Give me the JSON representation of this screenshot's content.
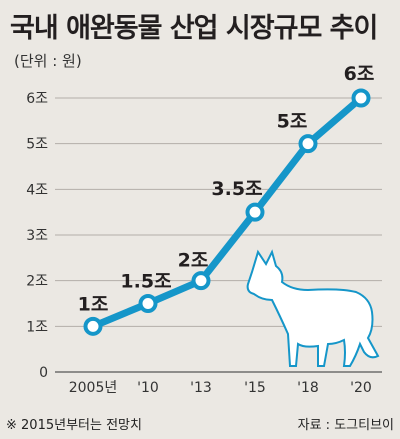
{
  "title": "국내 애완동물 산업 시장규모 추이",
  "unit": "(단위 : 원)",
  "footnote": "※ 2015년부터는 전망치",
  "source": "자료 : 도그티브이",
  "colors": {
    "line": "#1596c9",
    "grid": "#b3aea8",
    "background": "#ebe8e3",
    "dog": "#ffffff",
    "dog_stroke": "#1596c9"
  },
  "icon": "dog-illustration",
  "chart_data": {
    "type": "line",
    "title": "국내 애완동물 산업 시장규모 추이",
    "x": [
      "2005년",
      "'10",
      "'13",
      "'15",
      "'18",
      "'20"
    ],
    "values": [
      1,
      1.5,
      2,
      3.5,
      5,
      6
    ],
    "data_labels": [
      "1조",
      "1.5조",
      "2조",
      "3.5조",
      "5조",
      "6조"
    ],
    "y_ticks": [
      {
        "value": 0,
        "label": "0"
      },
      {
        "value": 1,
        "label": "1조"
      },
      {
        "value": 2,
        "label": "2조"
      },
      {
        "value": 3,
        "label": "3조"
      },
      {
        "value": 4,
        "label": "4조"
      },
      {
        "value": 5,
        "label": "5조"
      },
      {
        "value": 6,
        "label": "6조"
      }
    ],
    "ylim": [
      0,
      6
    ],
    "grid": true,
    "ylabel": "",
    "xlabel": ""
  }
}
